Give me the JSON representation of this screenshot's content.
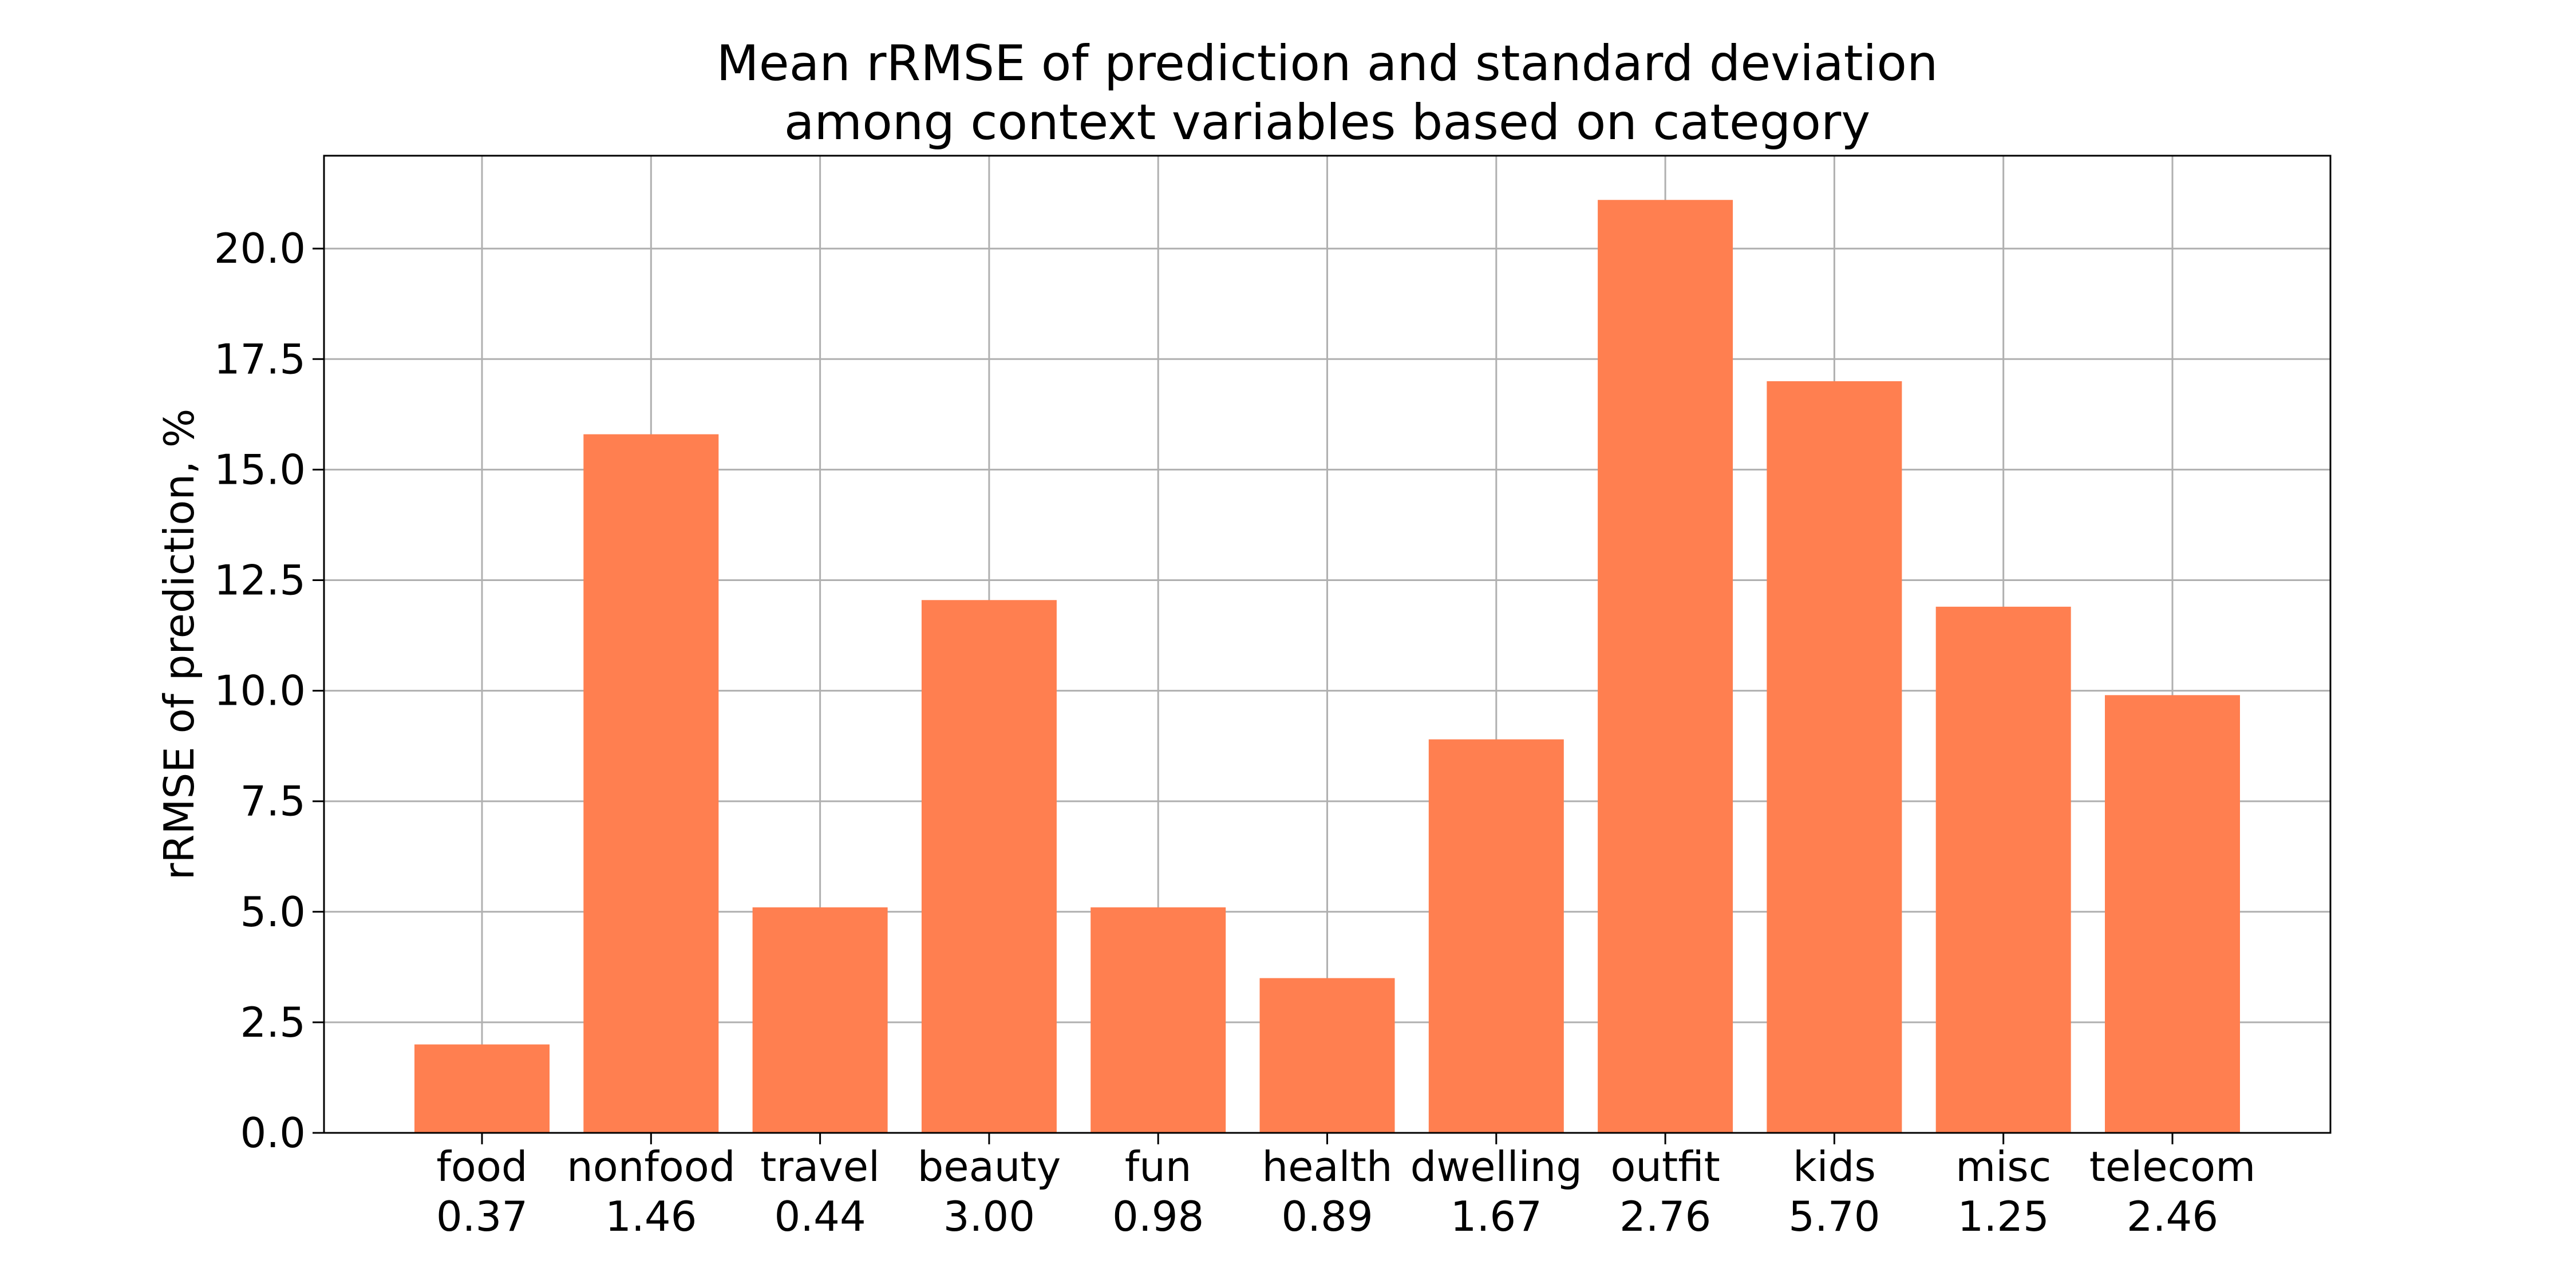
{
  "chart_data": {
    "type": "bar",
    "title_lines": [
      "Mean rRMSE of prediction and standard deviation",
      "among context variables based on category"
    ],
    "xlabel": "",
    "ylabel": "rRMSE of prediction, %",
    "categories": [
      "food",
      "nonfood",
      "travel",
      "beauty",
      "fun",
      "health",
      "dwelling",
      "outfit",
      "kids",
      "misc",
      "telecom"
    ],
    "std_labels": [
      "0.37",
      "1.46",
      "0.44",
      "3.00",
      "0.98",
      "0.89",
      "1.67",
      "2.76",
      "5.70",
      "1.25",
      "2.46"
    ],
    "values": [
      2.0,
      15.8,
      5.1,
      12.05,
      5.1,
      3.5,
      8.9,
      21.1,
      17.0,
      11.9,
      9.9
    ],
    "ylim": [
      0,
      22.1
    ],
    "yticks": [
      "0.0",
      "2.5",
      "5.0",
      "7.5",
      "10.0",
      "12.5",
      "15.0",
      "17.5",
      "20.0"
    ],
    "grid": true,
    "colors": {
      "bar": "#ff7f50",
      "grid": "#b0b0b0",
      "axis": "#000000"
    }
  }
}
